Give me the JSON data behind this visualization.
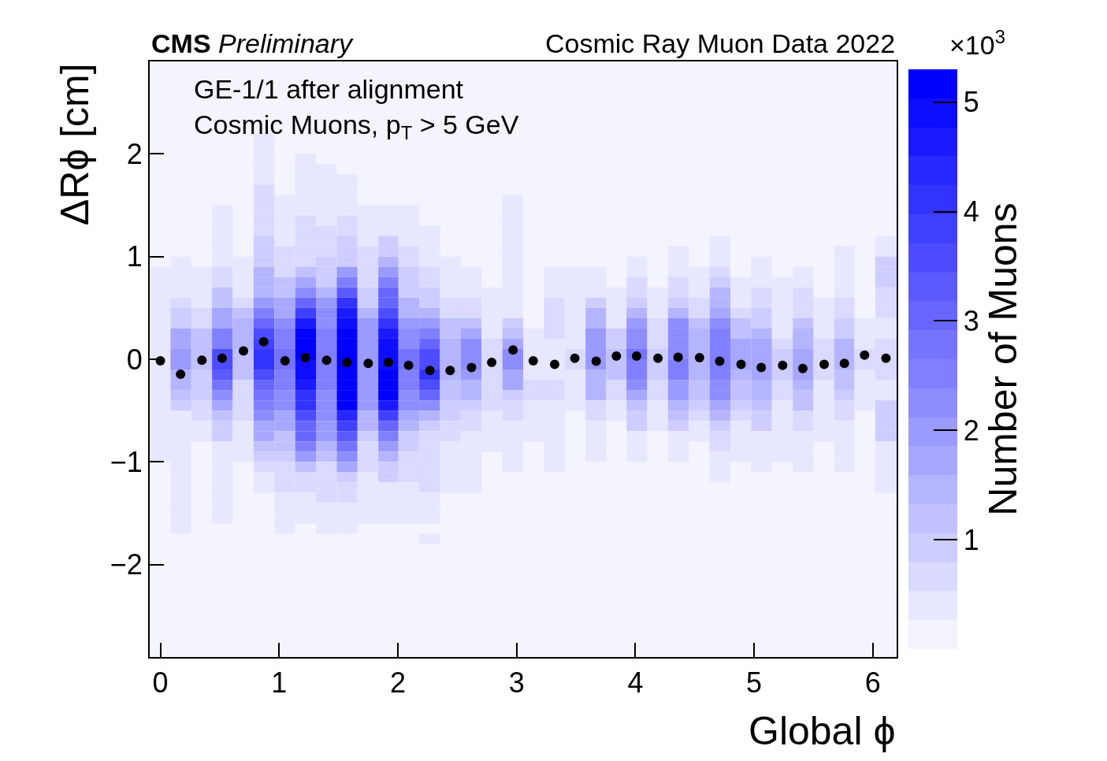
{
  "chart_data": {
    "type": "heatmap",
    "title": "CMS Preliminary",
    "subtitle": "Cosmic Ray Muon Data 2022",
    "xlabel": "Global ϕ",
    "ylabel": "ΔRϕ [cm]",
    "clabel": "Number of Muons",
    "annotations": [
      "GE-1/1 after alignment",
      "Cosmic Muons, p$_{T}$ > 5 GeV",
      "×10$^{3}$"
    ],
    "x": [
      0,
      0.17,
      0.35,
      0.52,
      0.7,
      0.87,
      1.05,
      1.22,
      1.4,
      1.57,
      1.75,
      1.92,
      2.09,
      2.27,
      2.44,
      2.62,
      2.79,
      2.97,
      3.14,
      3.32,
      3.49,
      3.67,
      3.84,
      4.01,
      4.19,
      4.36,
      4.54,
      4.71,
      4.89,
      5.06,
      5.24,
      5.41,
      5.59,
      5.76,
      5.93,
      6.11
    ],
    "y": [
      2.15,
      2.05,
      1.95,
      1.85,
      1.75,
      1.65,
      1.55,
      1.45,
      1.35,
      1.25,
      1.15,
      1.05,
      0.95,
      0.85,
      0.75,
      0.65,
      0.55,
      0.45,
      0.35,
      0.25,
      0.15,
      0.05,
      -0.05,
      -0.15,
      -0.25,
      -0.35,
      -0.45,
      -0.55,
      -0.65,
      -0.75,
      -0.85,
      -0.95,
      -1.05,
      -1.15,
      -1.25,
      -1.35,
      -1.45,
      -1.55,
      -1.65,
      -1.75
    ],
    "cells": [
      [
        null,
        null,
        null,
        null,
        null,
        0.4,
        null,
        null,
        null,
        null,
        null,
        null,
        null,
        null,
        null,
        null,
        null,
        null,
        null,
        null,
        null,
        null,
        null,
        null,
        null,
        null,
        null,
        null,
        null,
        null,
        null,
        null,
        null,
        null,
        null,
        null
      ],
      [
        null,
        null,
        null,
        null,
        null,
        0.4,
        null,
        null,
        null,
        null,
        null,
        null,
        null,
        null,
        null,
        null,
        null,
        null,
        null,
        null,
        null,
        null,
        null,
        null,
        null,
        null,
        null,
        null,
        null,
        null,
        null,
        null,
        null,
        null,
        null,
        null
      ],
      [
        null,
        null,
        null,
        null,
        null,
        0.4,
        null,
        0.4,
        null,
        null,
        null,
        null,
        null,
        null,
        null,
        null,
        null,
        null,
        null,
        null,
        null,
        null,
        null,
        null,
        null,
        null,
        null,
        null,
        null,
        null,
        null,
        null,
        null,
        null,
        null,
        null
      ],
      [
        null,
        null,
        null,
        null,
        null,
        0.4,
        null,
        0.4,
        0.4,
        null,
        null,
        null,
        null,
        null,
        null,
        null,
        null,
        null,
        null,
        null,
        null,
        null,
        null,
        null,
        null,
        null,
        null,
        null,
        null,
        null,
        null,
        null,
        null,
        null,
        null,
        null
      ],
      [
        null,
        null,
        null,
        null,
        null,
        0.4,
        null,
        0.4,
        0.4,
        0.4,
        null,
        null,
        null,
        null,
        null,
        null,
        null,
        null,
        null,
        null,
        null,
        null,
        null,
        null,
        null,
        null,
        null,
        null,
        null,
        null,
        null,
        null,
        null,
        null,
        null,
        null
      ],
      [
        null,
        null,
        null,
        null,
        null,
        0.7,
        null,
        0.4,
        0.4,
        0.4,
        null,
        null,
        null,
        null,
        null,
        null,
        null,
        null,
        null,
        null,
        null,
        null,
        null,
        null,
        null,
        null,
        null,
        null,
        null,
        null,
        null,
        null,
        null,
        null,
        null,
        null
      ],
      [
        null,
        null,
        null,
        null,
        null,
        0.7,
        0.4,
        0.4,
        0.4,
        0.4,
        null,
        null,
        null,
        null,
        null,
        null,
        null,
        0.4,
        null,
        null,
        null,
        null,
        null,
        null,
        null,
        null,
        null,
        null,
        null,
        null,
        null,
        null,
        null,
        null,
        null,
        null
      ],
      [
        null,
        null,
        null,
        0.4,
        null,
        0.7,
        0.4,
        0.4,
        0.4,
        0.4,
        0.4,
        0.4,
        0.4,
        null,
        null,
        null,
        null,
        0.4,
        null,
        null,
        null,
        null,
        null,
        null,
        null,
        null,
        null,
        null,
        null,
        null,
        null,
        null,
        null,
        null,
        null,
        null
      ],
      [
        null,
        null,
        null,
        0.4,
        null,
        0.7,
        0.4,
        0.7,
        0.4,
        0.7,
        0.4,
        0.4,
        0.4,
        null,
        null,
        null,
        null,
        0.4,
        null,
        null,
        null,
        null,
        null,
        null,
        null,
        null,
        null,
        null,
        null,
        null,
        null,
        null,
        null,
        null,
        null,
        null
      ],
      [
        null,
        null,
        null,
        0.4,
        null,
        0.7,
        0.4,
        0.7,
        0.7,
        0.7,
        0.4,
        0.4,
        0.4,
        0.4,
        null,
        null,
        null,
        0.4,
        null,
        null,
        null,
        null,
        null,
        null,
        null,
        null,
        null,
        null,
        null,
        null,
        null,
        null,
        null,
        null,
        null,
        null
      ],
      [
        null,
        null,
        null,
        0.4,
        null,
        0.9,
        0.4,
        0.7,
        0.7,
        0.9,
        0.4,
        0.9,
        0.4,
        0.4,
        null,
        null,
        null,
        0.4,
        null,
        null,
        null,
        null,
        null,
        null,
        null,
        null,
        null,
        0.4,
        null,
        null,
        null,
        null,
        null,
        null,
        null,
        0.4
      ],
      [
        null,
        null,
        null,
        0.4,
        null,
        0.9,
        0.7,
        0.7,
        0.7,
        0.9,
        0.7,
        0.9,
        0.7,
        0.4,
        null,
        null,
        null,
        0.4,
        null,
        null,
        null,
        null,
        null,
        null,
        null,
        0.4,
        null,
        0.4,
        null,
        null,
        null,
        null,
        null,
        0.4,
        null,
        0.4
      ],
      [
        null,
        0.4,
        null,
        0.4,
        0.4,
        0.9,
        0.7,
        0.7,
        0.9,
        0.9,
        0.7,
        1.5,
        0.7,
        0.4,
        0.4,
        null,
        null,
        0.4,
        null,
        null,
        null,
        null,
        null,
        0.4,
        null,
        0.4,
        null,
        0.4,
        null,
        0.4,
        null,
        null,
        null,
        0.4,
        null,
        0.9
      ],
      [
        0.4,
        0.4,
        0.4,
        0.7,
        0.4,
        1.5,
        0.7,
        1.2,
        0.9,
        2.0,
        0.7,
        2.0,
        0.9,
        0.7,
        0.4,
        0.4,
        null,
        0.4,
        null,
        0.4,
        0.4,
        0.4,
        null,
        0.4,
        null,
        0.4,
        0.4,
        0.7,
        null,
        0.4,
        null,
        0.4,
        null,
        0.4,
        null,
        0.9
      ],
      [
        0.4,
        0.4,
        0.4,
        0.7,
        0.4,
        1.5,
        1.2,
        1.7,
        0.9,
        2.5,
        0.7,
        2.5,
        0.9,
        0.7,
        0.4,
        0.4,
        null,
        0.4,
        null,
        0.4,
        0.4,
        0.4,
        null,
        0.7,
        null,
        0.7,
        0.4,
        0.9,
        0.4,
        0.4,
        0.4,
        0.4,
        null,
        0.4,
        null,
        0.9
      ],
      [
        0.4,
        0.4,
        0.4,
        1.2,
        0.4,
        1.5,
        1.2,
        2.3,
        1.5,
        3.3,
        0.9,
        3.0,
        0.9,
        0.9,
        0.4,
        0.4,
        0.4,
        0.4,
        null,
        0.4,
        0.4,
        0.4,
        0.4,
        0.7,
        0.4,
        0.7,
        0.4,
        1.5,
        0.4,
        0.7,
        0.4,
        0.7,
        null,
        0.4,
        null,
        0.7
      ],
      [
        0.4,
        0.7,
        0.4,
        1.2,
        0.7,
        2.0,
        1.7,
        3.0,
        2.0,
        4.1,
        0.9,
        3.0,
        1.5,
        0.9,
        0.7,
        0.7,
        0.4,
        0.4,
        null,
        0.7,
        0.4,
        0.9,
        0.4,
        0.9,
        0.4,
        0.9,
        0.7,
        1.5,
        0.4,
        0.7,
        0.4,
        0.7,
        0.4,
        0.7,
        null,
        0.7
      ],
      [
        0.4,
        0.9,
        0.7,
        1.7,
        1.2,
        2.5,
        1.7,
        3.8,
        2.3,
        4.6,
        1.5,
        3.6,
        1.5,
        1.5,
        0.7,
        0.7,
        0.4,
        0.4,
        null,
        0.7,
        0.4,
        1.5,
        0.4,
        1.5,
        0.4,
        1.5,
        0.7,
        1.7,
        0.7,
        0.9,
        0.4,
        0.7,
        0.4,
        0.7,
        null,
        0.7
      ],
      [
        0.4,
        0.9,
        0.7,
        1.7,
        1.5,
        3.0,
        2.3,
        4.6,
        2.3,
        4.9,
        2.0,
        4.1,
        2.0,
        2.0,
        1.2,
        1.2,
        0.4,
        0.9,
        null,
        0.7,
        0.4,
        1.5,
        0.4,
        2.0,
        0.7,
        2.3,
        1.2,
        2.3,
        1.2,
        0.9,
        0.4,
        1.2,
        0.4,
        0.9,
        0.4,
        0.4
      ],
      [
        0.4,
        1.7,
        1.2,
        2.5,
        1.5,
        3.6,
        2.5,
        5.2,
        2.5,
        5.2,
        2.0,
        4.6,
        2.3,
        2.5,
        1.2,
        1.7,
        0.4,
        1.2,
        0.4,
        0.7,
        0.4,
        2.0,
        0.9,
        2.3,
        0.7,
        2.3,
        1.5,
        2.5,
        1.2,
        1.5,
        0.4,
        1.5,
        0.4,
        0.9,
        0.4,
        0.4
      ],
      [
        0.4,
        1.7,
        1.2,
        2.5,
        1.5,
        3.8,
        2.5,
        5.2,
        2.5,
        5.2,
        2.0,
        4.9,
        2.3,
        3.0,
        1.5,
        2.3,
        0.7,
        1.7,
        0.4,
        0.4,
        0.4,
        2.0,
        0.9,
        2.3,
        0.7,
        2.3,
        1.5,
        2.5,
        1.7,
        1.7,
        0.7,
        1.5,
        0.7,
        1.5,
        0.4,
        0.7
      ],
      [
        0.4,
        2.0,
        1.2,
        3.6,
        1.2,
        4.1,
        2.8,
        5.2,
        2.5,
        5.2,
        2.0,
        4.9,
        2.8,
        3.6,
        1.5,
        2.3,
        0.7,
        2.3,
        0.4,
        0.4,
        0.7,
        2.0,
        1.2,
        2.8,
        0.9,
        2.3,
        1.5,
        2.5,
        1.7,
        1.7,
        0.9,
        1.7,
        0.7,
        1.5,
        0.7,
        0.7
      ],
      [
        0.4,
        2.0,
        1.2,
        3.6,
        1.2,
        4.1,
        2.8,
        4.9,
        2.5,
        5.2,
        2.0,
        4.9,
        2.8,
        3.6,
        1.5,
        2.3,
        0.7,
        2.3,
        0.4,
        0.4,
        0.7,
        2.0,
        1.2,
        2.5,
        0.9,
        2.5,
        1.5,
        2.5,
        1.7,
        1.7,
        0.9,
        1.7,
        0.7,
        1.5,
        0.7,
        0.7
      ],
      [
        0.4,
        1.5,
        0.9,
        3.3,
        1.2,
        3.6,
        2.5,
        4.9,
        2.5,
        5.2,
        2.0,
        5.2,
        2.5,
        4.1,
        1.5,
        2.0,
        0.7,
        1.7,
        0.4,
        0.4,
        0.4,
        1.5,
        1.2,
        2.5,
        0.9,
        2.5,
        1.5,
        2.5,
        1.5,
        1.7,
        0.9,
        1.7,
        0.7,
        1.2,
        0.4,
        0.7
      ],
      [
        0.4,
        1.5,
        0.9,
        2.8,
        0.7,
        3.0,
        2.5,
        4.6,
        2.5,
        5.2,
        2.0,
        5.2,
        2.5,
        3.6,
        1.2,
        1.5,
        0.7,
        1.7,
        0.7,
        0.7,
        0.4,
        1.5,
        0.7,
        2.3,
        0.7,
        2.0,
        1.2,
        2.3,
        1.2,
        1.5,
        0.7,
        1.5,
        0.4,
        1.2,
        0.4,
        0.4
      ],
      [
        0.4,
        1.2,
        0.9,
        2.3,
        0.7,
        2.8,
        2.3,
        4.1,
        2.3,
        5.2,
        2.0,
        5.2,
        2.3,
        3.0,
        1.2,
        1.5,
        0.7,
        0.9,
        0.7,
        0.7,
        0.4,
        1.5,
        0.7,
        1.7,
        0.7,
        2.0,
        1.2,
        2.3,
        1.2,
        1.5,
        0.7,
        1.2,
        0.4,
        0.9,
        0.4,
        0.4
      ],
      [
        0.4,
        0.9,
        0.7,
        1.7,
        0.7,
        2.5,
        2.3,
        4.1,
        2.3,
        5.2,
        2.0,
        4.6,
        2.3,
        2.3,
        0.9,
        0.9,
        0.7,
        0.7,
        0.4,
        0.4,
        0.4,
        0.7,
        0.4,
        1.2,
        0.4,
        1.5,
        0.9,
        1.7,
        0.9,
        1.2,
        0.4,
        1.2,
        0.4,
        0.7,
        0.4,
        0.9
      ],
      [
        0.4,
        0.4,
        0.7,
        1.2,
        0.7,
        2.3,
        1.7,
        3.6,
        2.3,
        4.4,
        1.5,
        3.8,
        1.7,
        1.5,
        0.9,
        0.7,
        0.4,
        0.7,
        0.4,
        0.4,
        null,
        0.7,
        0.4,
        0.9,
        0.4,
        1.2,
        0.7,
        1.5,
        0.7,
        0.9,
        0.4,
        0.7,
        0.4,
        0.7,
        null,
        0.9
      ],
      [
        0.4,
        0.4,
        0.4,
        0.9,
        0.4,
        1.7,
        1.7,
        3.0,
        2.0,
        3.8,
        1.5,
        3.0,
        1.5,
        0.9,
        0.7,
        0.7,
        0.4,
        0.4,
        0.4,
        0.4,
        null,
        0.4,
        null,
        0.9,
        0.4,
        0.9,
        0.4,
        0.9,
        0.4,
        0.9,
        0.4,
        0.7,
        0.4,
        0.4,
        null,
        0.9
      ],
      [
        0.4,
        0.4,
        0.4,
        0.9,
        0.4,
        1.7,
        1.2,
        3.0,
        2.0,
        3.3,
        0.9,
        2.5,
        0.9,
        0.7,
        0.7,
        0.4,
        0.4,
        0.4,
        0.4,
        0.4,
        null,
        0.4,
        null,
        0.4,
        null,
        0.4,
        0.4,
        0.7,
        0.4,
        0.4,
        0.4,
        0.4,
        0.4,
        0.4,
        null,
        0.9
      ],
      [
        0.4,
        0.4,
        null,
        0.4,
        0.4,
        1.2,
        1.2,
        2.5,
        1.5,
        2.8,
        0.7,
        2.0,
        0.9,
        0.7,
        0.4,
        0.4,
        0.4,
        0.4,
        null,
        0.4,
        null,
        0.4,
        null,
        0.4,
        null,
        0.4,
        null,
        0.7,
        0.4,
        0.4,
        0.4,
        0.4,
        null,
        0.4,
        null,
        0.4
      ],
      [
        0.4,
        0.4,
        null,
        0.4,
        0.4,
        0.9,
        0.9,
        2.0,
        1.2,
        2.3,
        0.7,
        1.5,
        0.7,
        0.7,
        0.4,
        0.4,
        null,
        0.4,
        null,
        0.4,
        null,
        0.4,
        null,
        0.4,
        null,
        0.4,
        null,
        0.4,
        0.4,
        0.4,
        0.4,
        0.4,
        null,
        0.4,
        null,
        0.4
      ],
      [
        null,
        0.4,
        null,
        0.4,
        null,
        0.7,
        0.7,
        1.2,
        0.7,
        1.7,
        0.7,
        0.9,
        0.7,
        0.7,
        0.4,
        0.4,
        null,
        0.4,
        null,
        0.4,
        null,
        null,
        null,
        null,
        null,
        null,
        null,
        0.4,
        null,
        0.4,
        null,
        0.4,
        null,
        0.4,
        null,
        0.4
      ],
      [
        null,
        0.4,
        null,
        0.4,
        null,
        0.4,
        0.7,
        0.7,
        0.7,
        0.9,
        0.4,
        0.9,
        0.7,
        0.7,
        0.4,
        0.4,
        null,
        null,
        null,
        null,
        null,
        null,
        null,
        null,
        null,
        null,
        null,
        0.4,
        null,
        null,
        null,
        null,
        null,
        null,
        null,
        0.4
      ],
      [
        null,
        0.4,
        null,
        0.4,
        null,
        0.4,
        0.7,
        0.7,
        0.7,
        0.7,
        0.4,
        0.4,
        0.4,
        0.7,
        0.4,
        0.4,
        null,
        null,
        null,
        null,
        null,
        null,
        null,
        null,
        null,
        null,
        null,
        null,
        null,
        null,
        null,
        null,
        null,
        null,
        null,
        0.4
      ],
      [
        null,
        0.4,
        null,
        0.4,
        null,
        null,
        0.4,
        0.4,
        0.7,
        0.7,
        0.4,
        0.4,
        0.4,
        0.4,
        null,
        null,
        null,
        null,
        null,
        null,
        null,
        null,
        null,
        null,
        null,
        null,
        null,
        null,
        null,
        null,
        null,
        null,
        null,
        null,
        null,
        null
      ],
      [
        null,
        0.4,
        null,
        0.4,
        null,
        null,
        0.4,
        0.4,
        0.4,
        0.4,
        0.4,
        0.4,
        0.4,
        0.4,
        null,
        null,
        null,
        null,
        null,
        null,
        null,
        null,
        null,
        null,
        null,
        null,
        null,
        null,
        null,
        null,
        null,
        null,
        null,
        null,
        null,
        null
      ],
      [
        null,
        0.4,
        null,
        0.4,
        null,
        null,
        0.4,
        0.4,
        0.4,
        0.4,
        0.4,
        0.4,
        0.4,
        0.4,
        null,
        null,
        null,
        null,
        null,
        null,
        null,
        null,
        null,
        null,
        null,
        null,
        null,
        null,
        null,
        null,
        null,
        null,
        null,
        null,
        null,
        null
      ],
      [
        null,
        0.4,
        null,
        null,
        null,
        null,
        0.4,
        null,
        0.4,
        0.4,
        null,
        null,
        null,
        null,
        null,
        null,
        null,
        null,
        null,
        null,
        null,
        null,
        null,
        null,
        null,
        null,
        null,
        null,
        null,
        null,
        null,
        null,
        null,
        null,
        null,
        null
      ],
      [
        null,
        null,
        null,
        null,
        null,
        null,
        null,
        null,
        null,
        null,
        null,
        null,
        null,
        0.4,
        null,
        null,
        null,
        null,
        null,
        null,
        null,
        null,
        null,
        null,
        null,
        null,
        null,
        null,
        null,
        null,
        null,
        null,
        null,
        null,
        null,
        null
      ]
    ],
    "clim": [
      0,
      5.3
    ],
    "cticks": [
      1,
      2,
      3,
      4,
      5
    ],
    "series": [
      {
        "type": "scatter",
        "color": "#000000",
        "values": [
          -0.015,
          -0.145,
          -0.01,
          0.01,
          0.08,
          0.17,
          -0.015,
          0.015,
          -0.01,
          -0.03,
          -0.04,
          -0.03,
          -0.06,
          -0.11,
          -0.11,
          -0.08,
          -0.03,
          0.09,
          -0.015,
          -0.05,
          0.01,
          -0.02,
          0.03,
          0.03,
          0.01,
          0.02,
          0.015,
          -0.02,
          -0.05,
          -0.08,
          -0.06,
          -0.09,
          -0.05,
          -0.04,
          0.04,
          0.01
        ]
      }
    ],
    "marker": "circle",
    "xlim": [
      -0.09,
      6.2
    ],
    "xticks": [
      0,
      1,
      2,
      3,
      4,
      5,
      6
    ],
    "ylim": [
      -2.9,
      2.9
    ],
    "yticks": [
      {
        "value": -2,
        "label": "−2"
      },
      {
        "value": -1,
        "label": "−1"
      },
      0,
      1,
      2
    ]
  }
}
